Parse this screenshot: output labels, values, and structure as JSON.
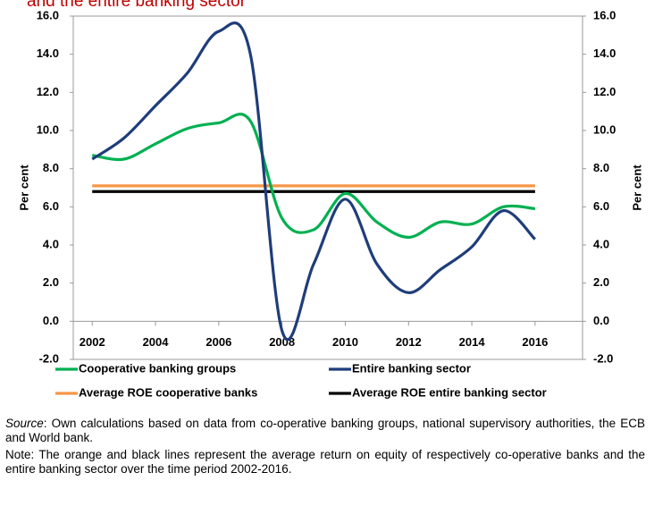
{
  "chart_data": {
    "type": "line",
    "title": "and the entire banking sector",
    "y_label": "Per cent",
    "y2_label": "Per cent",
    "x": [
      2002,
      2003,
      2004,
      2005,
      2006,
      2007,
      2008,
      2009,
      2010,
      2011,
      2012,
      2013,
      2014,
      2015,
      2016
    ],
    "xlim": [
      2001.4,
      2017.5
    ],
    "xticks": [
      2002,
      2004,
      2006,
      2008,
      2010,
      2012,
      2014,
      2016
    ],
    "ylim": [
      -2,
      16
    ],
    "yticks": [
      {
        "value": -2,
        "label": "-2.0"
      },
      {
        "value": 0,
        "label": "0.0"
      },
      {
        "value": 2,
        "label": "2.0"
      },
      {
        "value": 4,
        "label": "4.0"
      },
      {
        "value": 6,
        "label": "6.0"
      },
      {
        "value": 8,
        "label": "8.0"
      },
      {
        "value": 10,
        "label": "10.0"
      },
      {
        "value": 12,
        "label": "12.0"
      },
      {
        "value": 14,
        "label": "14.0"
      },
      {
        "value": 16,
        "label": "16.0"
      }
    ],
    "y2lim": [
      -2,
      16
    ],
    "y2ticks": [
      {
        "value": -2,
        "label": "-2.0"
      },
      {
        "value": 0,
        "label": "0.0"
      },
      {
        "value": 2,
        "label": "2.0"
      },
      {
        "value": 4,
        "label": "4.0"
      },
      {
        "value": 6,
        "label": "6.0"
      },
      {
        "value": 8,
        "label": "8.0"
      },
      {
        "value": 10,
        "label": "10.0"
      },
      {
        "value": 12,
        "label": "12.0"
      },
      {
        "value": 14,
        "label": "14.0"
      },
      {
        "value": 16,
        "label": "16.0"
      }
    ],
    "grid": false,
    "smooth": true,
    "series": [
      {
        "name": "Cooperative banking groups",
        "color": "#00b050",
        "values": [
          8.7,
          8.5,
          9.3,
          10.1,
          10.4,
          10.5,
          5.4,
          4.8,
          6.7,
          5.2,
          4.4,
          5.2,
          5.1,
          6.0,
          5.9
        ]
      },
      {
        "name": "Entire banking sector",
        "color": "#1f3d7a",
        "values": [
          8.5,
          9.6,
          11.3,
          13.0,
          15.2,
          14.0,
          -0.5,
          3.0,
          6.4,
          3.0,
          1.5,
          2.7,
          3.9,
          5.8,
          4.3
        ]
      },
      {
        "name": "Average ROE cooperative banks",
        "color": "#f79646",
        "values": [
          7.1,
          7.1,
          7.1,
          7.1,
          7.1,
          7.1,
          7.1,
          7.1,
          7.1,
          7.1,
          7.1,
          7.1,
          7.1,
          7.1,
          7.1
        ]
      },
      {
        "name": "Average ROE entire banking sector",
        "color": "#000000",
        "values": [
          6.8,
          6.8,
          6.8,
          6.8,
          6.8,
          6.8,
          6.8,
          6.8,
          6.8,
          6.8,
          6.8,
          6.8,
          6.8,
          6.8,
          6.8
        ]
      }
    ]
  },
  "notes": {
    "source_label": "Source",
    "source_text": ": Own calculations based on data from co-operative banking groups, national supervisory authorities, the ECB and World bank.",
    "note": "Note: The orange and black lines represent the average return on equity of respectively co-operative banks and the entire banking sector over the time period 2002-2016."
  }
}
